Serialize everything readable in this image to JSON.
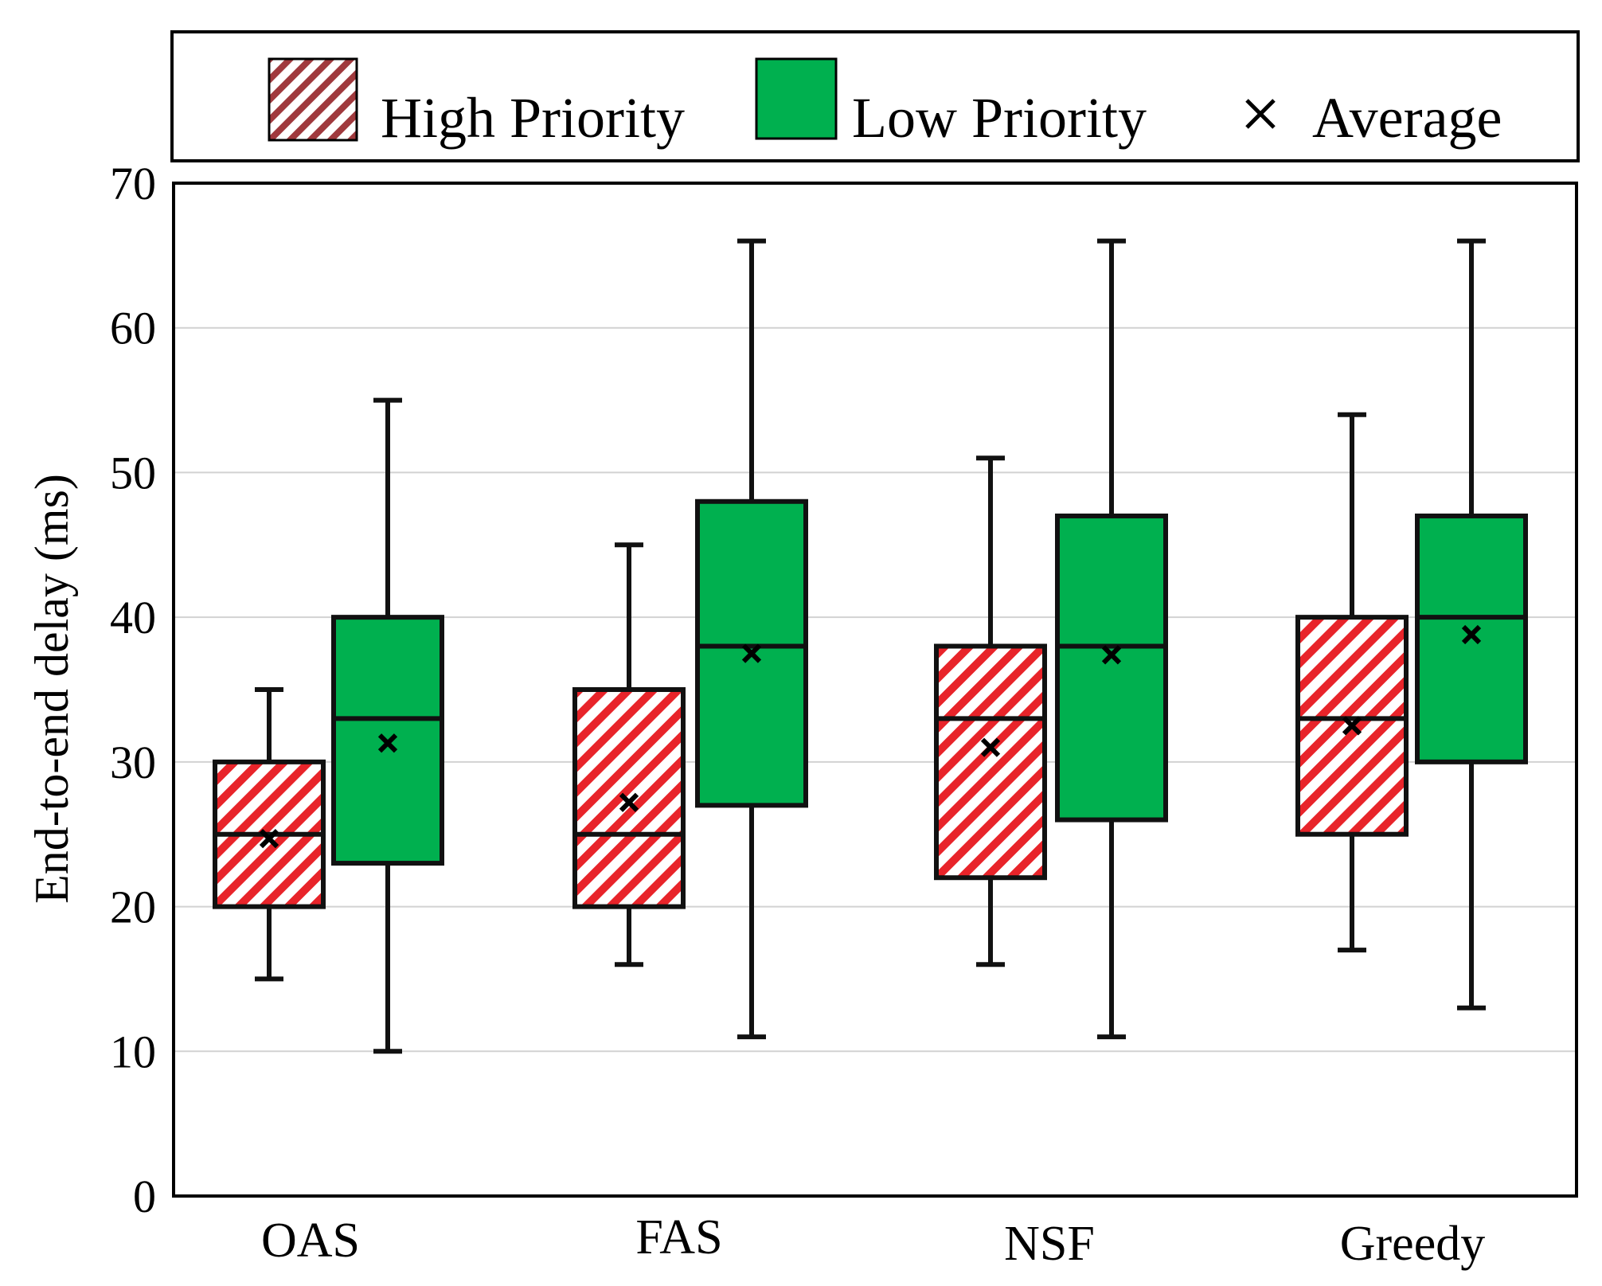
{
  "chart_data": {
    "type": "boxplot",
    "title": "",
    "xlabel": "",
    "ylabel": "End-to-end delay (ms)",
    "ylim": [
      0,
      70
    ],
    "yticks": [
      0,
      10,
      20,
      30,
      40,
      50,
      60,
      70
    ],
    "grid": "horizontal",
    "legend_position": "top",
    "categories": [
      "OAS",
      "FAS",
      "NSF",
      "Greedy"
    ],
    "series": [
      {
        "name": "High Priority",
        "color": "#e8242a",
        "pattern": "diagonal-hatch",
        "boxes": [
          {
            "min": 15,
            "q1": 20,
            "median": 25,
            "q3": 30,
            "max": 35,
            "mean": 24.7
          },
          {
            "min": 16,
            "q1": 20,
            "median": 25,
            "q3": 35,
            "max": 45,
            "mean": 27.2
          },
          {
            "min": 16,
            "q1": 22,
            "median": 33,
            "q3": 38,
            "max": 51,
            "mean": 31.0
          },
          {
            "min": 17,
            "q1": 25,
            "median": 33,
            "q3": 40,
            "max": 54,
            "mean": 32.5
          }
        ]
      },
      {
        "name": "Low Priority",
        "color": "#00b04f",
        "pattern": "solid",
        "boxes": [
          {
            "min": 10,
            "q1": 23,
            "median": 33,
            "q3": 40,
            "max": 55,
            "mean": 31.3
          },
          {
            "min": 11,
            "q1": 27,
            "median": 38,
            "q3": 48,
            "max": 66,
            "mean": 37.5
          },
          {
            "min": 11,
            "q1": 26,
            "median": 38,
            "q3": 47,
            "max": 66,
            "mean": 37.4
          },
          {
            "min": 13,
            "q1": 30,
            "median": 40,
            "q3": 47,
            "max": 66,
            "mean": 38.8
          }
        ]
      }
    ],
    "legend": [
      {
        "label": "High Priority",
        "marker": "hatched-box"
      },
      {
        "label": "Low Priority",
        "marker": "solid-box"
      },
      {
        "label": "Average",
        "marker": "x"
      }
    ]
  }
}
